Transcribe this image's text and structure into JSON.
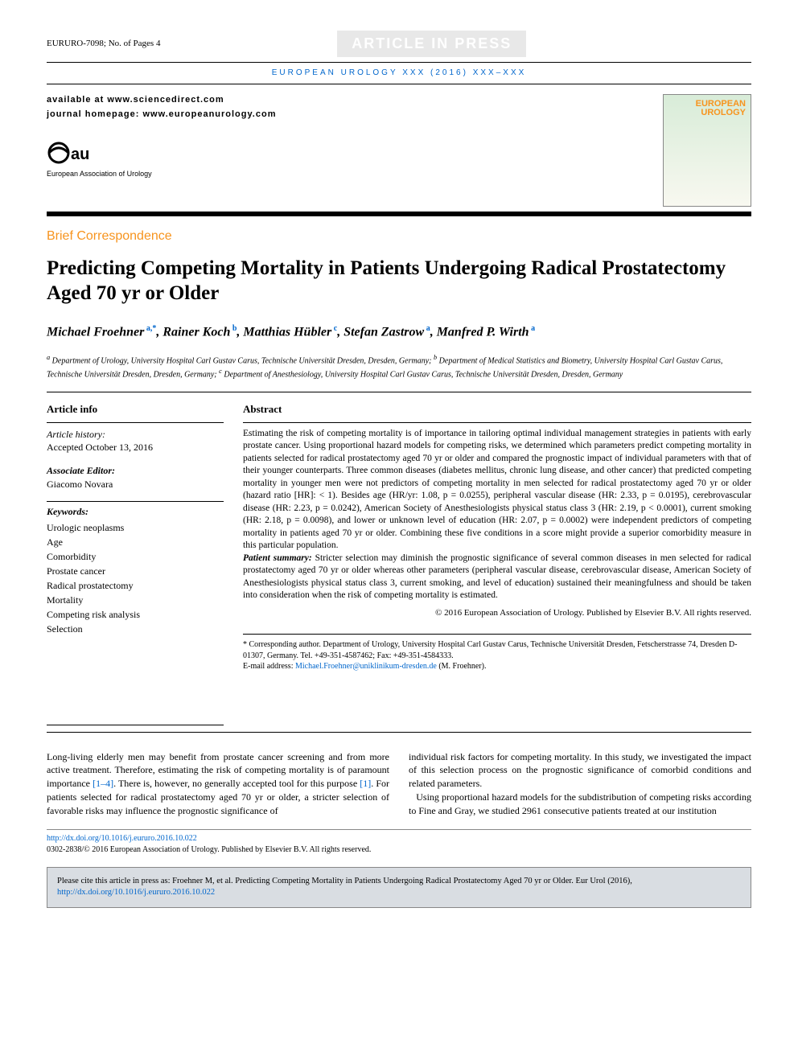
{
  "header": {
    "article_ref": "EURURO-7098; No. of Pages 4",
    "in_press_text": "ARTICLE IN PRESS",
    "journal_line": "EUROPEAN UROLOGY XXX (2016) XXX–XXX",
    "available_at": "available at www.sciencedirect.com",
    "homepage": "journal homepage: www.europeanurology.com",
    "eau_label": "European Association of Urology",
    "cover_title": "EUROPEAN UROLOGY"
  },
  "article": {
    "type": "Brief Correspondence",
    "title": "Predicting Competing Mortality in Patients Undergoing Radical Prostatectomy Aged 70 yr or Older",
    "authors_html": "Michael Froehner<sup> a,*</sup>, Rainer Koch<sup> b</sup>, Matthias Hübler<sup> c</sup>, Stefan Zastrow<sup> a</sup>, Manfred P. Wirth<sup> a</sup>",
    "affiliations_html": "<sup>a</sup> Department of Urology, University Hospital Carl Gustav Carus, Technische Universität Dresden, Dresden, Germany; <sup>b</sup> Department of Medical Statistics and Biometry, University Hospital Carl Gustav Carus, Technische Universität Dresden, Dresden, Germany; <sup>c</sup> Department of Anesthesiology, University Hospital Carl Gustav Carus, Technische Universität Dresden, Dresden, Germany"
  },
  "info": {
    "heading": "Article info",
    "history_label": "Article history:",
    "history_value": "Accepted October 13, 2016",
    "assoc_editor_label": "Associate Editor:",
    "assoc_editor_value": "Giacomo Novara",
    "keywords_label": "Keywords:",
    "keywords": [
      "Urologic neoplasms",
      "Age",
      "Comorbidity",
      "Prostate cancer",
      "Radical prostatectomy",
      "Mortality",
      "Competing risk analysis",
      "Selection"
    ]
  },
  "abstract": {
    "heading": "Abstract",
    "text": "Estimating the risk of competing mortality is of importance in tailoring optimal individual management strategies in patients with early prostate cancer. Using proportional hazard models for competing risks, we determined which parameters predict competing mortality in patients selected for radical prostatectomy aged 70 yr or older and compared the prognostic impact of individual parameters with that of their younger counterparts. Three common diseases (diabetes mellitus, chronic lung disease, and other cancer) that predicted competing mortality in younger men were not predictors of competing mortality in men selected for radical prostatectomy aged 70 yr or older (hazard ratio [HR]: < 1). Besides age (HR/yr: 1.08, p = 0.0255), peripheral vascular disease (HR: 2.33, p = 0.0195), cerebrovascular disease (HR: 2.23, p = 0.0242), American Society of Anesthesiologists physical status class 3 (HR: 2.19, p < 0.0001), current smoking (HR: 2.18, p = 0.0098), and lower or unknown level of education (HR: 2.07, p = 0.0002) were independent predictors of competing mortality in patients aged 70 yr or older. Combining these five conditions in a score might provide a superior comorbidity measure in this particular population.",
    "patient_summary_label": "Patient summary:",
    "patient_summary": " Stricter selection may diminish the prognostic significance of several common diseases in men selected for radical prostatectomy aged 70 yr or older whereas other parameters (peripheral vascular disease, cerebrovascular disease, American Society of Anesthesiologists physical status class 3, current smoking, and level of education) sustained their meaningfulness and should be taken into consideration when the risk of competing mortality is estimated.",
    "copyright": "© 2016 European Association of Urology. Published by Elsevier B.V. All rights reserved."
  },
  "correspondence": {
    "text": "* Corresponding author. Department of Urology, University Hospital Carl Gustav Carus, Technische Universität Dresden, Fetscherstrasse 74, Dresden D-01307, Germany. Tel. +49-351-4587462; Fax: +49-351-4584333.",
    "email_label": "E-mail address: ",
    "email": "Michael.Froehner@uniklinikum-dresden.de",
    "email_suffix": " (M. Froehner)."
  },
  "body": {
    "col1_html": "Long-living elderly men may benefit from prostate cancer screening and from more active treatment. Therefore, estimating the risk of competing mortality is of paramount importance <span class=\"ref-link\">[1–4]</span>. There is, however, no generally accepted tool for this purpose <span class=\"ref-link\">[1]</span>. For patients selected for radical prostatectomy aged 70 yr or older, a stricter selection of favorable risks may influence the prognostic significance of",
    "col2_html": "individual risk factors for competing mortality. In this study, we investigated the impact of this selection process on the prognostic significance of comorbid conditions and related parameters.<br>&nbsp;&nbsp;&nbsp;Using proportional hazard models for the subdistribution of competing risks according to Fine and Gray, we studied 2961 consecutive patients treated at our institution"
  },
  "footer": {
    "doi_url": "http://dx.doi.org/10.1016/j.eururo.2016.10.022",
    "issn_line": "0302-2838/© 2016 European Association of Urology. Published by Elsevier B.V. All rights reserved.",
    "cite_text": "Please cite this article in press as: Froehner M, et al. Predicting Competing Mortality in Patients Undergoing Radical Prostatectomy Aged 70 yr or Older. Eur Urol (2016), ",
    "cite_doi": "http://dx.doi.org/10.1016/j.eururo.2016.10.022"
  },
  "colors": {
    "accent_orange": "#f7941e",
    "link_blue": "#0066cc",
    "cite_bg": "#d9dde2"
  }
}
